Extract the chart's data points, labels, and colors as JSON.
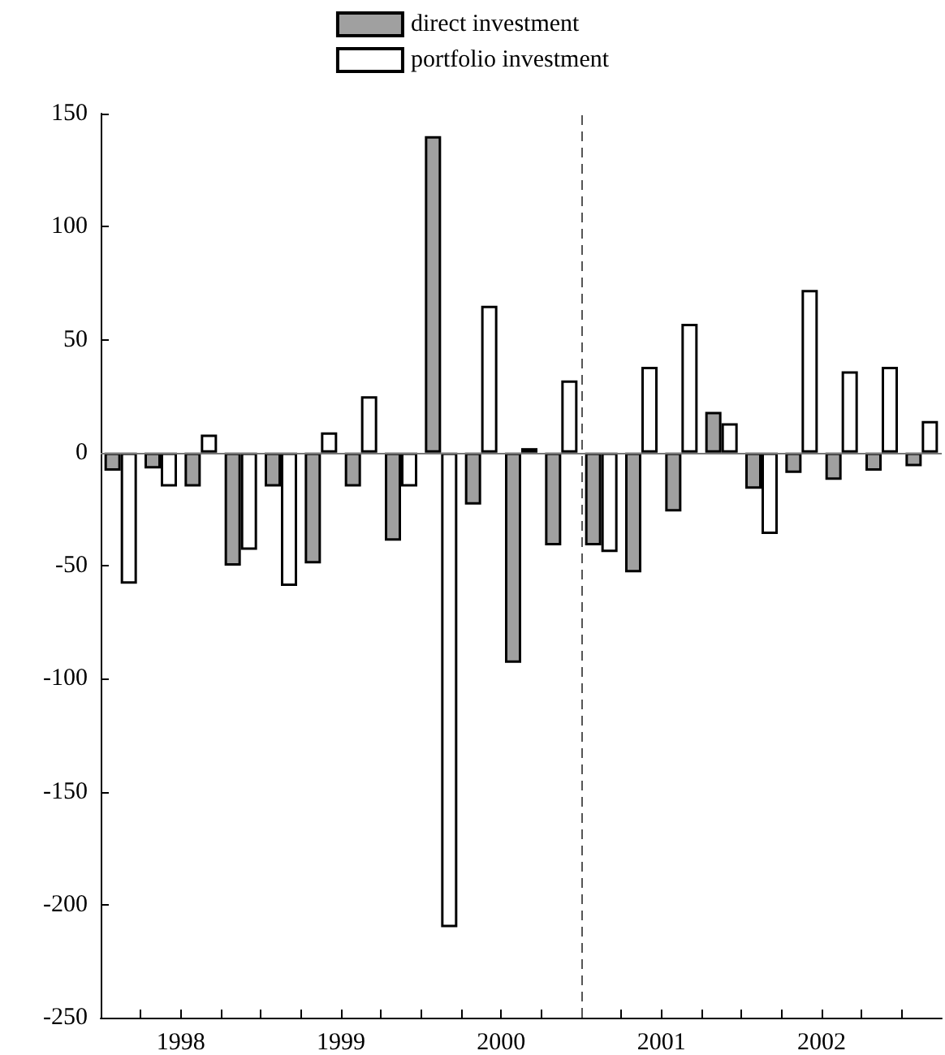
{
  "chart_data": {
    "type": "bar",
    "x": [
      1998.125,
      1998.375,
      1998.625,
      1998.875,
      1999.125,
      1999.375,
      1999.625,
      1999.875,
      2000.125,
      2000.375,
      2000.625,
      2000.875,
      2001.125,
      2001.375,
      2001.625,
      2001.875,
      2002.125,
      2002.375,
      2002.625,
      2002.875,
      2003.125
    ],
    "series": [
      {
        "name": "direct investment",
        "color": "#a0a0a0",
        "values": [
          -8,
          -7,
          -15,
          -50,
          -15,
          -49,
          -15,
          -39,
          140,
          -23,
          -93,
          -41,
          -41,
          -53,
          -26,
          18,
          -16,
          -9,
          -12,
          -8,
          -6
        ]
      },
      {
        "name": "portfolio investment",
        "color": "#ffffff",
        "values": [
          -58,
          -15,
          8,
          -43,
          -59,
          9,
          25,
          -15,
          -210,
          65,
          2,
          32,
          -44,
          38,
          57,
          13,
          -36,
          72,
          36,
          38,
          14
        ]
      }
    ],
    "xlim": [
      1998,
      2003.25
    ],
    "xticks": [
      {
        "value": 1998,
        "label": null
      },
      {
        "value": 1998.25,
        "label": null
      },
      {
        "value": 1998.5,
        "label": "1998"
      },
      {
        "value": 1998.75,
        "label": null
      },
      {
        "value": 1999,
        "label": null
      },
      {
        "value": 1999.25,
        "label": null
      },
      {
        "value": 1999.5,
        "label": "1999"
      },
      {
        "value": 1999.75,
        "label": null
      },
      {
        "value": 2000,
        "label": null
      },
      {
        "value": 2000.25,
        "label": null
      },
      {
        "value": 2000.5,
        "label": "2000"
      },
      {
        "value": 2000.75,
        "label": null
      },
      {
        "value": 2001,
        "label": null
      },
      {
        "value": 2001.25,
        "label": null
      },
      {
        "value": 2001.5,
        "label": "2001"
      },
      {
        "value": 2001.75,
        "label": null
      },
      {
        "value": 2002,
        "label": null
      },
      {
        "value": 2002.25,
        "label": null
      },
      {
        "value": 2002.5,
        "label": "2002"
      },
      {
        "value": 2002.75,
        "label": null
      },
      {
        "value": 2003,
        "label": null
      }
    ],
    "ylim": [
      -250,
      150
    ],
    "yticks": [
      -250,
      -200,
      -150,
      -100,
      -50,
      0,
      50,
      100,
      150
    ],
    "ref_lines": [
      {
        "axis": "x",
        "value": 2001,
        "label": null,
        "color": "#555555",
        "line_style": "dashed"
      },
      {
        "axis": "y",
        "value": 0,
        "label": null,
        "color": "#777777",
        "line_style": "solid"
      }
    ],
    "grid": false,
    "legend": "top"
  }
}
